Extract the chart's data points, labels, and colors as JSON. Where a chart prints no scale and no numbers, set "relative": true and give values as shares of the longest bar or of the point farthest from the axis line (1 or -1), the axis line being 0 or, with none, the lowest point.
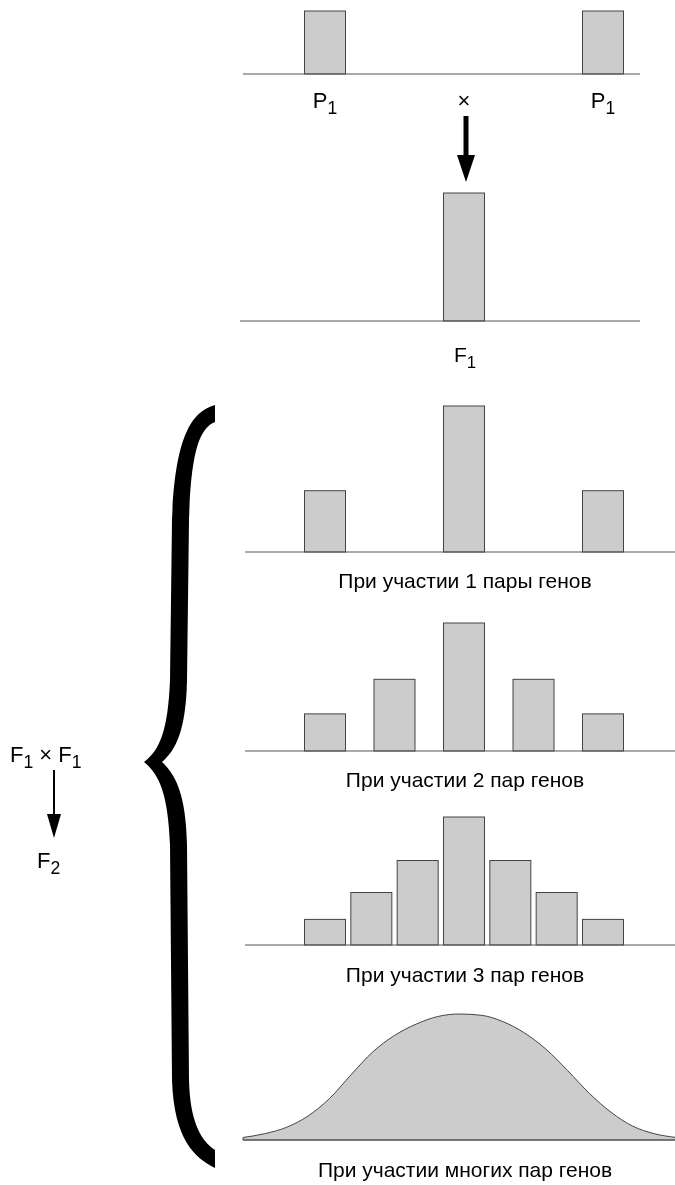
{
  "chart_data": [
    {
      "type": "bar",
      "relative": true,
      "categories": [
        "P$_{1}$",
        "×",
        "P$_{1}$"
      ],
      "values": [
        1,
        null,
        1
      ],
      "color": "#cccccc"
    },
    {
      "type": "bar",
      "relative": true,
      "categories": [
        null,
        null,
        null
      ],
      "values": [
        null,
        1,
        null
      ],
      "color": "#cccccc",
      "xlabel": "F$_{1}$"
    },
    {
      "type": "bar",
      "relative": true,
      "categories": [
        null,
        null,
        null
      ],
      "values": [
        0.42,
        1,
        0.42
      ],
      "color": "#cccccc",
      "xlabel": "При участии 1 пары генов",
      "annotations": [
        "F$_{1}$ × F$_{1}$",
        "F$_{2}$"
      ]
    },
    {
      "type": "bar",
      "relative": true,
      "categories": [
        null,
        null,
        null,
        null,
        null
      ],
      "values": [
        0.29,
        0.56,
        1,
        0.56,
        0.29
      ],
      "color": "#cccccc",
      "xlabel": "При участии 2 пар генов"
    },
    {
      "type": "bar",
      "relative": true,
      "categories": [
        null,
        null,
        null,
        null,
        null,
        null,
        null
      ],
      "values": [
        0.2,
        0.41,
        0.66,
        1,
        0.66,
        0.41,
        0.2
      ],
      "color": "#cccccc",
      "xlabel": "При участии 3 пар генов"
    },
    {
      "type": "area",
      "relative": true,
      "categories": [
        null,
        null,
        null,
        null,
        null,
        null,
        null,
        null,
        null,
        null,
        null,
        null,
        null,
        null,
        null,
        null,
        null,
        null,
        null,
        null,
        null
      ],
      "values": [
        0.02,
        0.05,
        0.1,
        0.19,
        0.33,
        0.52,
        0.7,
        0.83,
        0.92,
        0.98,
        1,
        0.99,
        0.94,
        0.85,
        0.72,
        0.55,
        0.37,
        0.22,
        0.11,
        0.05,
        0.02
      ],
      "color": "#cccccc",
      "xlabel": "При участии многих пар генов"
    }
  ]
}
